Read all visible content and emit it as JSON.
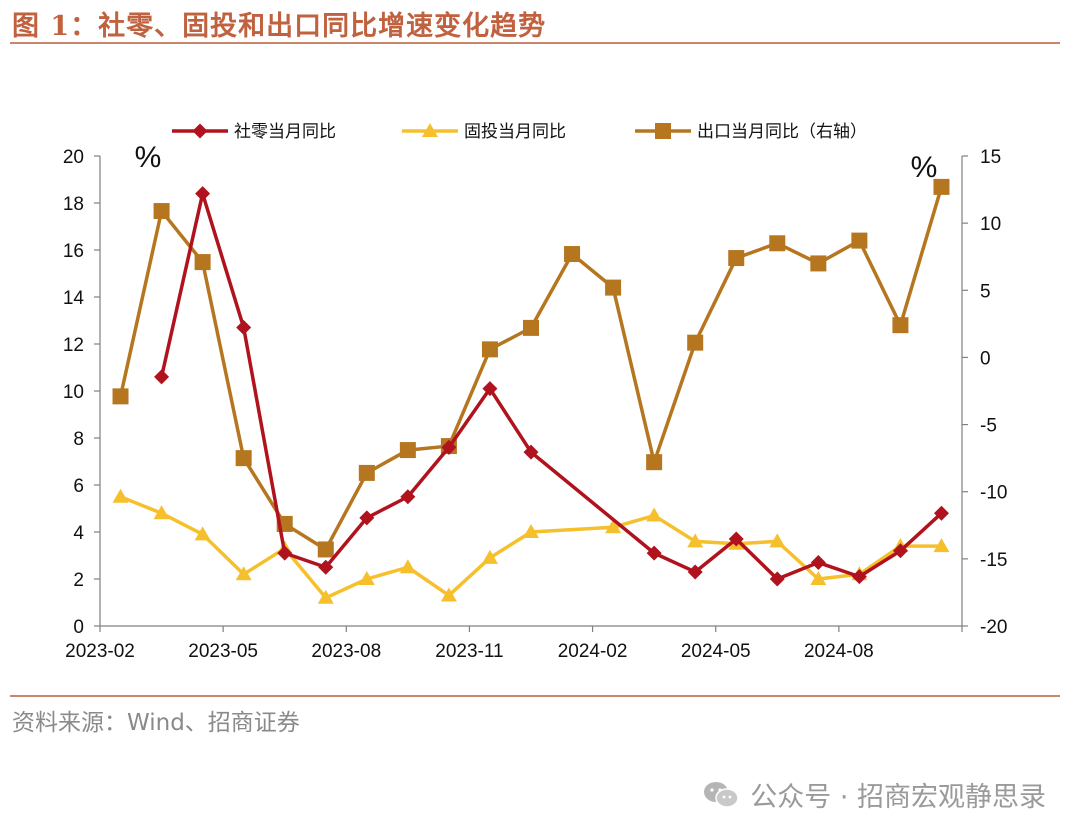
{
  "page": {
    "title": "图 1：社零、固投和出口同比增速变化趋势",
    "source": "资料来源：Wind、招商证券",
    "watermark": "公众号 · 招商宏观静思录"
  },
  "chart_data": {
    "type": "line",
    "x": [
      "2023-02",
      "2023-03",
      "2023-04",
      "2023-05",
      "2023-06",
      "2023-07",
      "2023-08",
      "2023-09",
      "2023-10",
      "2023-11",
      "2023-12",
      "2024-01",
      "2024-02",
      "2024-03",
      "2024-04",
      "2024-05",
      "2024-06",
      "2024-07",
      "2024-08",
      "2024-09",
      "2024-10"
    ],
    "x_tick_labels": [
      "2023-02",
      "2023-05",
      "2023-08",
      "2023-11",
      "2024-02",
      "2024-05",
      "2024-08"
    ],
    "left_axis": {
      "unit": "%",
      "ylim": [
        0,
        20
      ],
      "ticks": [
        0,
        2,
        4,
        6,
        8,
        10,
        12,
        14,
        16,
        18,
        20
      ]
    },
    "right_axis": {
      "unit": "%",
      "ylim": [
        -20,
        15
      ],
      "ticks": [
        -20,
        -15,
        -10,
        -5,
        0,
        5,
        10,
        15
      ]
    },
    "series": [
      {
        "name": "社零当月同比",
        "axis": "left",
        "color": "#b0131d",
        "marker": "diamond",
        "values": [
          null,
          10.6,
          18.4,
          12.7,
          3.1,
          2.5,
          4.6,
          5.5,
          7.6,
          10.1,
          7.4,
          null,
          null,
          3.1,
          2.3,
          3.7,
          2.0,
          2.7,
          2.1,
          3.2,
          4.8
        ]
      },
      {
        "name": "固投当月同比",
        "axis": "left",
        "color": "#f5c02c",
        "marker": "triangle",
        "values": [
          5.5,
          4.8,
          3.9,
          2.2,
          3.3,
          1.2,
          2.0,
          2.5,
          1.3,
          2.9,
          4.0,
          null,
          4.2,
          4.7,
          3.6,
          3.5,
          3.6,
          2.0,
          2.2,
          3.4,
          3.4
        ]
      },
      {
        "name": "出口当月同比（右轴）",
        "axis": "right",
        "color": "#b5761f",
        "marker": "square",
        "values": [
          -2.9,
          10.9,
          7.1,
          -7.5,
          -12.4,
          -14.3,
          -8.6,
          -6.9,
          -6.6,
          0.6,
          2.2,
          7.7,
          5.2,
          -7.8,
          1.1,
          7.4,
          8.5,
          7.0,
          8.7,
          2.4,
          12.7
        ]
      }
    ],
    "grid": false,
    "legend": "top"
  }
}
